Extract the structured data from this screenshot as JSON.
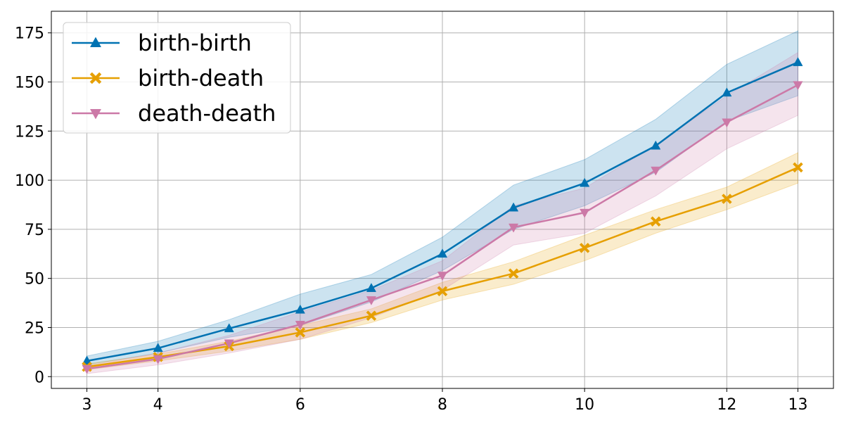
{
  "chart_data": {
    "type": "line",
    "title": "",
    "xlabel": "",
    "ylabel": "",
    "x": [
      3,
      4,
      5,
      6,
      7,
      8,
      9,
      10,
      11,
      12,
      13
    ],
    "xticks": [
      3,
      4,
      6,
      8,
      10,
      12,
      13
    ],
    "xlim": [
      2.5,
      13.5
    ],
    "yticks": [
      0,
      25,
      50,
      75,
      100,
      125,
      150,
      175
    ],
    "ylim": [
      -6,
      186
    ],
    "grid": true,
    "legend_position": "top-left",
    "series": [
      {
        "name": "birth-birth",
        "color": "#0072b2",
        "marker": "triangle-up",
        "values": [
          8,
          14.5,
          24.5,
          34,
          45,
          62.5,
          86,
          98.5,
          117.5,
          144.5,
          160
        ],
        "lower": [
          6,
          12,
          20,
          26,
          38,
          54,
          75,
          87,
          104,
          130,
          143
        ],
        "upper": [
          10.5,
          18,
          29,
          42,
          52,
          71,
          97.5,
          110.5,
          131,
          159,
          176
        ]
      },
      {
        "name": "birth-death",
        "color": "#e69f00",
        "marker": "x-filled",
        "values": [
          5,
          10,
          15.5,
          22.5,
          31,
          43.5,
          52.5,
          65.5,
          79,
          90.5,
          106.5
        ],
        "lower": [
          3.5,
          8,
          13,
          19,
          27.5,
          39,
          47,
          59,
          73,
          85,
          98.5
        ],
        "upper": [
          6.5,
          11.5,
          18,
          26,
          34.5,
          48,
          58.5,
          72,
          85,
          96.5,
          114
        ]
      },
      {
        "name": "death-death",
        "color": "#cc79a7",
        "marker": "triangle-down",
        "values": [
          4,
          9,
          17,
          26.5,
          39,
          51.5,
          76,
          83.5,
          105,
          129.5,
          148.5
        ],
        "lower": [
          1.5,
          6,
          12,
          19,
          30,
          44,
          67,
          73,
          92,
          116,
          133
        ],
        "upper": [
          5.5,
          12,
          21,
          33,
          44,
          59,
          87,
          96,
          118,
          143,
          165
        ]
      }
    ]
  }
}
